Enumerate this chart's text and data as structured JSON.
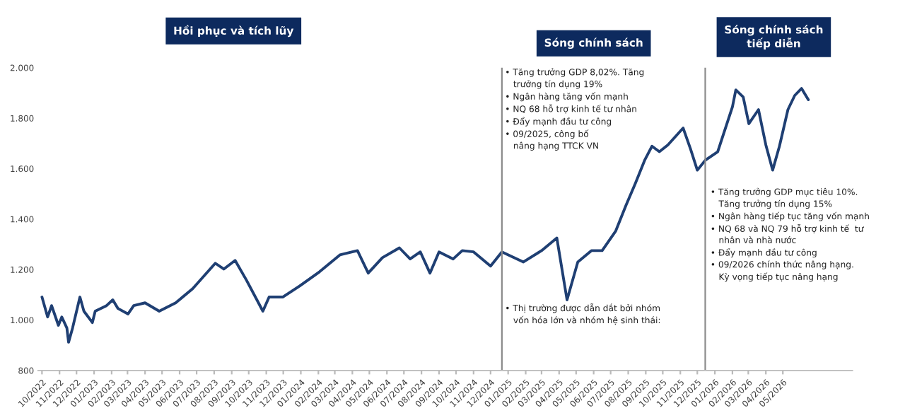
{
  "chart_data": {
    "type": "line",
    "x": [
      "2022-10-01",
      "2022-10-11",
      "2022-10-18",
      "2022-10-30",
      "2022-11-05",
      "2022-11-14",
      "2022-11-17",
      "2022-11-24",
      "2022-12-07",
      "2022-12-14",
      "2022-12-29",
      "2023-01-03",
      "2023-01-23",
      "2023-02-03",
      "2023-02-12",
      "2023-03-02",
      "2023-03-12",
      "2023-04-01",
      "2023-04-26",
      "2023-05-25",
      "2023-06-24",
      "2023-08-03",
      "2023-08-18",
      "2023-09-07",
      "2023-09-27",
      "2023-10-26",
      "2023-11-06",
      "2023-11-30",
      "2023-12-30",
      "2024-02-03",
      "2024-03-10",
      "2024-04-10",
      "2024-04-29",
      "2024-05-24",
      "2024-06-23",
      "2024-07-12",
      "2024-07-30",
      "2024-08-16",
      "2024-09-01",
      "2024-09-26",
      "2024-10-12",
      "2024-11-01",
      "2024-12-01",
      "2024-12-21",
      "2025-01-28",
      "2025-03-01",
      "2025-03-28",
      "2025-04-15",
      "2025-05-04",
      "2025-05-28",
      "2025-06-16",
      "2025-07-10",
      "2025-07-28",
      "2025-08-13",
      "2025-08-30",
      "2025-09-12",
      "2025-09-25",
      "2025-10-10",
      "2025-11-06",
      "2025-11-19",
      "2025-12-01",
      "2025-12-15",
      "2026-01-06",
      "2026-02-01",
      "2026-02-07",
      "2026-02-20",
      "2026-03-02",
      "2026-03-19",
      "2026-04-01",
      "2026-04-13",
      "2026-04-25",
      "2026-05-10",
      "2026-05-22",
      "2026-06-03",
      "2026-06-15"
    ],
    "series": [
      {
        "color": "#1f3f73",
        "values": [
          1091,
          1012,
          1057,
          979,
          1012,
          968,
          912,
          968,
          1091,
          1035,
          990,
          1035,
          1057,
          1080,
          1046,
          1024,
          1057,
          1068,
          1035,
          1068,
          1124,
          1225,
          1202,
          1236,
          1158,
          1035,
          1091,
          1091,
          1135,
          1191,
          1258,
          1275,
          1186,
          1247,
          1286,
          1242,
          1270,
          1186,
          1270,
          1242,
          1275,
          1270,
          1214,
          1270,
          1230,
          1275,
          1325,
          1080,
          1230,
          1275,
          1275,
          1353,
          1454,
          1538,
          1633,
          1689,
          1667,
          1694,
          1761,
          1678,
          1594,
          1633,
          1667,
          1845,
          1912,
          1884,
          1778,
          1834,
          1694,
          1594,
          1689,
          1834,
          1890,
          1918,
          1873
        ]
      }
    ],
    "xlim": [
      "2022-09-24",
      "2026-09-01"
    ],
    "xticks": [
      {
        "value": "2022-10",
        "label": "10/2022"
      },
      {
        "value": "2022-11",
        "label": "11/2022"
      },
      {
        "value": "2022-12",
        "label": "12/2022"
      },
      {
        "value": "2023-01",
        "label": "01/2023"
      },
      {
        "value": "2023-02",
        "label": "02/2023"
      },
      {
        "value": "2023-03",
        "label": "03/2023"
      },
      {
        "value": "2023-04",
        "label": "04/2023"
      },
      {
        "value": "2023-05",
        "label": "05/2023"
      },
      {
        "value": "2023-06",
        "label": "06/2023"
      },
      {
        "value": "2023-07",
        "label": "07/2023"
      },
      {
        "value": "2023-08",
        "label": "08/2023"
      },
      {
        "value": "2023-09",
        "label": "09/2023"
      },
      {
        "value": "2023-10",
        "label": "10/2023"
      },
      {
        "value": "2023-11",
        "label": "11/2023"
      },
      {
        "value": "2023-12",
        "label": "12/2023"
      },
      {
        "value": "2024-01",
        "label": "01/2024"
      },
      {
        "value": "2024-02",
        "label": "02/2024"
      },
      {
        "value": "2024-03",
        "label": "03/2024"
      },
      {
        "value": "2024-04",
        "label": "04/2024"
      },
      {
        "value": "2024-05",
        "label": "05/2024"
      },
      {
        "value": "2024-06",
        "label": "06/2024"
      },
      {
        "value": "2024-07",
        "label": "07/2024"
      },
      {
        "value": "2024-08",
        "label": "08/2024"
      },
      {
        "value": "2024-09",
        "label": "09/2024"
      },
      {
        "value": "2024-10",
        "label": "10/2024"
      },
      {
        "value": "2024-11",
        "label": "11/2024"
      },
      {
        "value": "2024-12",
        "label": "12/2024"
      },
      {
        "value": "2025-01",
        "label": "01/2025"
      },
      {
        "value": "2025-02",
        "label": "02/2025"
      },
      {
        "value": "2025-03",
        "label": "03/2025"
      },
      {
        "value": "2025-04",
        "label": "04/2025"
      },
      {
        "value": "2025-05",
        "label": "05/2025"
      },
      {
        "value": "2025-06",
        "label": "06/2025"
      },
      {
        "value": "2025-07",
        "label": "07/2025"
      },
      {
        "value": "2025-08",
        "label": "08/2025"
      },
      {
        "value": "2025-09",
        "label": "09/2025"
      },
      {
        "value": "2025-10",
        "label": "10/2025"
      },
      {
        "value": "2025-11",
        "label": "11/2025"
      },
      {
        "value": "2025-12",
        "label": "12/2025"
      },
      {
        "value": "2026-01",
        "label": "01/2026"
      },
      {
        "value": "2026-02",
        "label": "02/2026"
      },
      {
        "value": "2026-03",
        "label": "03/2026"
      },
      {
        "value": "2026-04",
        "label": "04/2026"
      },
      {
        "value": "2026-05",
        "label": "05/2026"
      }
    ],
    "ylim": [
      800,
      2000
    ],
    "yticks": [
      {
        "value": 800,
        "label": "800"
      },
      {
        "value": 1000,
        "label": "1.000"
      },
      {
        "value": 1200,
        "label": "1.200"
      },
      {
        "value": 1400,
        "label": "1.400"
      },
      {
        "value": 1600,
        "label": "1.600"
      },
      {
        "value": 1800,
        "label": "1.800"
      },
      {
        "value": 2000,
        "label": "2.000"
      }
    ],
    "ref_lines": [
      {
        "axis": "x",
        "value": "2024-12-21",
        "color": "#8c8c8c"
      },
      {
        "axis": "x",
        "value": "2025-12-15",
        "color": "#8c8c8c"
      }
    ],
    "grid": false,
    "marker": "none",
    "line_style": "solid",
    "annotations": [
      "Hồi phục và tích lũy",
      "Sóng chính sách",
      "Sóng chính sách\ntiếp diễn",
      "• Tăng trưởng GDP 8,02%. Tăng\n   trưởng tín dụng 19%\n• Ngân hàng tăng vốn mạnh\n• NQ 68 hỗ trợ kinh tế tư nhân\n• Đẩy mạnh đầu tư công\n• 09/2025, công bố\n   nâng hạng TTCK VN",
      "• Thị trường được dẫn dắt bởi nhóm\n   vốn hóa lớn và nhóm hệ sinh thái:",
      "• Tăng trưởng GDP mục tiêu 10%.\n   Tăng trưởng tín dụng 15%\n• Ngân hàng tiếp tục tăng vốn mạnh\n• NQ 68 và NQ 79 hỗ trợ kinh tế  tư\n   nhân và nhà nước\n• Đẩy mạnh đầu tư công\n• 09/2026 chính thức nâng hạng.\n   Kỳ vọng tiếp tục nâng hạng"
    ]
  }
}
